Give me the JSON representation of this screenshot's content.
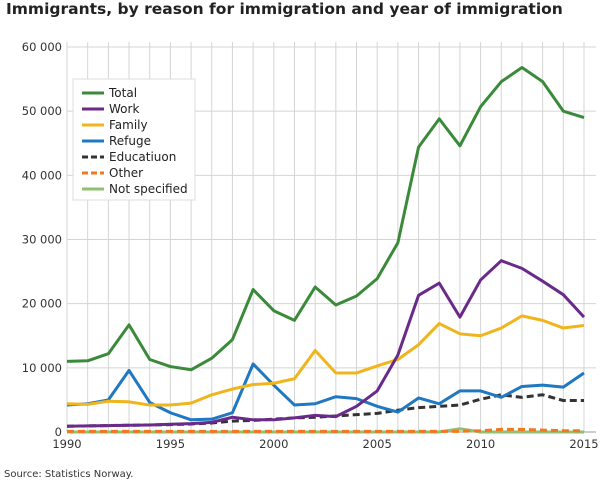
{
  "title": "Immigrants, by reason for immigration and year of immigration",
  "source": "Source: Statistics Norway.",
  "chart_data": {
    "type": "line",
    "title": "Immigrants, by reason for immigration and year of immigration",
    "xlabel": "",
    "ylabel": "",
    "x": [
      1990,
      1991,
      1992,
      1993,
      1994,
      1995,
      1996,
      1997,
      1998,
      1999,
      2000,
      2001,
      2002,
      2003,
      2004,
      2005,
      2006,
      2007,
      2008,
      2009,
      2010,
      2011,
      2012,
      2013,
      2014,
      2015
    ],
    "xlim": [
      1990,
      2015
    ],
    "ylim": [
      0,
      60000
    ],
    "x_ticks": [
      "1990",
      "1995",
      "2000",
      "2005",
      "2010",
      "2015"
    ],
    "y_ticks": [
      "0",
      "10 000",
      "20 000",
      "30 000",
      "40 000",
      "50 000",
      "60 000"
    ],
    "grid": true,
    "legend_position": "top-left",
    "series": [
      {
        "name": "Total",
        "color": "#3a8a3a",
        "dash": false,
        "values": [
          11000,
          11100,
          12200,
          16700,
          11300,
          10200,
          9700,
          11500,
          14400,
          22200,
          18900,
          17400,
          22600,
          19800,
          21200,
          23900,
          29500,
          44400,
          48800,
          44600,
          50700,
          54600,
          56800,
          54600,
          50000,
          49000
        ]
      },
      {
        "name": "Work",
        "color": "#6a2a8a",
        "dash": false,
        "values": [
          900,
          950,
          1000,
          1050,
          1100,
          1200,
          1300,
          1500,
          2300,
          1900,
          1900,
          2200,
          2600,
          2400,
          4000,
          6400,
          12000,
          21300,
          23200,
          17900,
          23700,
          26700,
          25500,
          23500,
          21400,
          17900
        ]
      },
      {
        "name": "Family",
        "color": "#f0b41c",
        "dash": false,
        "values": [
          4400,
          4300,
          4800,
          4700,
          4200,
          4200,
          4500,
          5800,
          6700,
          7400,
          7600,
          8300,
          12700,
          9200,
          9200,
          10300,
          11300,
          13600,
          16900,
          15300,
          15000,
          16200,
          18100,
          17400,
          16200,
          16600
        ]
      },
      {
        "name": "Refuge",
        "color": "#1f78c1",
        "dash": false,
        "values": [
          4200,
          4400,
          5000,
          9600,
          4600,
          3000,
          1900,
          2000,
          3000,
          10600,
          7300,
          4200,
          4400,
          5500,
          5200,
          4000,
          3100,
          5300,
          4400,
          6400,
          6400,
          5400,
          7100,
          7300,
          7000,
          9200
        ]
      },
      {
        "name": "Educatiuon",
        "color": "#333333",
        "dash": true,
        "values": [
          900,
          950,
          1000,
          1050,
          1100,
          1150,
          1250,
          1400,
          1700,
          1800,
          2000,
          2200,
          2300,
          2500,
          2700,
          2900,
          3400,
          3800,
          4000,
          4200,
          5100,
          5800,
          5400,
          5800,
          4900,
          4900
        ]
      },
      {
        "name": "Other",
        "color": "#f07820",
        "dash": true,
        "values": [
          100,
          100,
          100,
          100,
          100,
          100,
          100,
          100,
          100,
          100,
          100,
          100,
          100,
          100,
          100,
          100,
          100,
          100,
          100,
          100,
          200,
          400,
          400,
          300,
          200,
          200
        ]
      },
      {
        "name": "Not specified",
        "color": "#90c070",
        "dash": false,
        "values": [
          0,
          0,
          0,
          0,
          0,
          0,
          0,
          0,
          0,
          0,
          0,
          0,
          0,
          0,
          0,
          0,
          0,
          0,
          0,
          500,
          0,
          0,
          0,
          0,
          0,
          0
        ]
      }
    ]
  }
}
